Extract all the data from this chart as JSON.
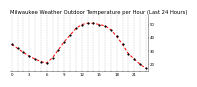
{
  "title": "Milwaukee Weather Outdoor Temperature per Hour (Last 24 Hours)",
  "hours": [
    0,
    1,
    2,
    3,
    4,
    5,
    6,
    7,
    8,
    9,
    10,
    11,
    12,
    13,
    14,
    15,
    16,
    17,
    18,
    19,
    20,
    21,
    22,
    23
  ],
  "temps": [
    35,
    32,
    29,
    26,
    24,
    22,
    21,
    25,
    31,
    37,
    42,
    47,
    50,
    51,
    51,
    50,
    49,
    46,
    41,
    35,
    28,
    24,
    20,
    17
  ],
  "line_color": "#ff0000",
  "marker_color": "#000000",
  "bg_color": "#ffffff",
  "plot_bg_color": "#ffffff",
  "grid_color": "#aaaaaa",
  "ylim": [
    15,
    57
  ],
  "ytick_values": [
    20,
    30,
    40,
    50
  ],
  "ytick_labels": [
    "20",
    "30",
    "40",
    "50"
  ],
  "title_fontsize": 3.8,
  "tick_fontsize": 2.8,
  "line_width": 0.7,
  "marker_size": 1.2,
  "dash_seq": [
    3,
    2
  ]
}
